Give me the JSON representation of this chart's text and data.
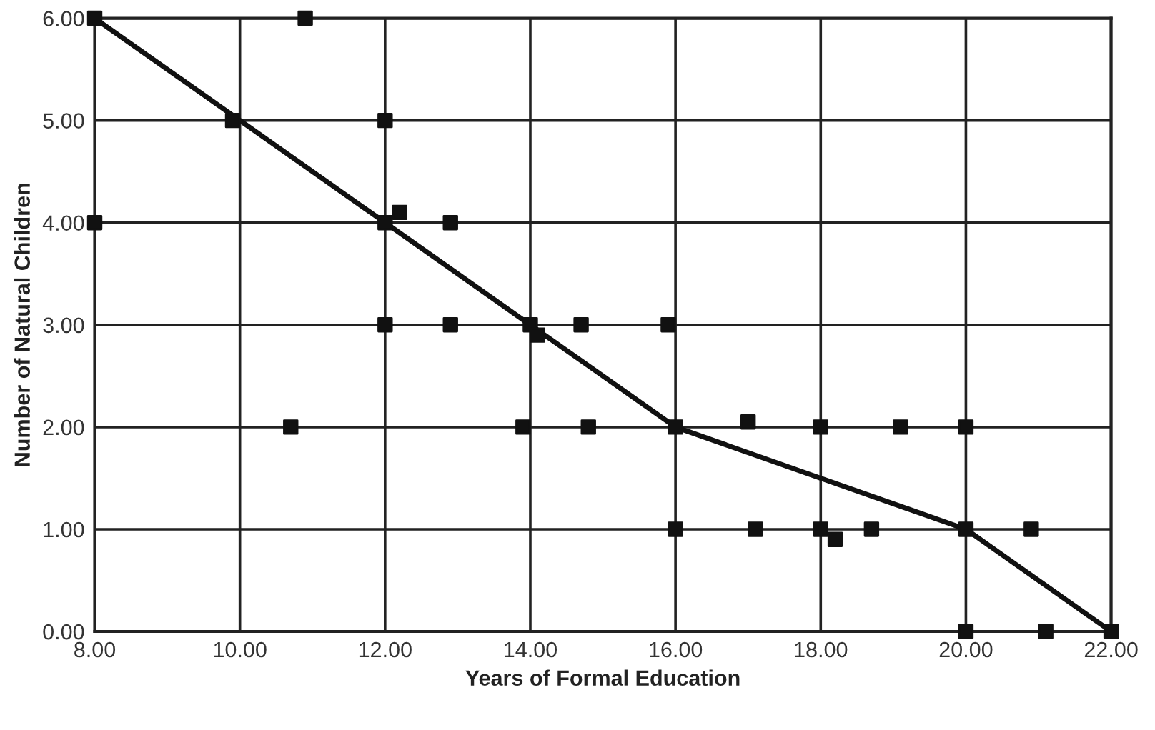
{
  "chart_data": {
    "type": "scatter",
    "xlabel": "Years of Formal Education",
    "ylabel": "Number of Natural Children",
    "xlim": [
      8,
      22
    ],
    "ylim": [
      0,
      6
    ],
    "xticks": [
      {
        "value": 8,
        "label": "8.00"
      },
      {
        "value": 10,
        "label": "10.00"
      },
      {
        "value": 12,
        "label": "12.00"
      },
      {
        "value": 14,
        "label": "14.00"
      },
      {
        "value": 16,
        "label": "16.00"
      },
      {
        "value": 18,
        "label": "18.00"
      },
      {
        "value": 20,
        "label": "20.00"
      },
      {
        "value": 22,
        "label": "22.00"
      }
    ],
    "yticks": [
      {
        "value": 0,
        "label": "0.00"
      },
      {
        "value": 1,
        "label": "1.00"
      },
      {
        "value": 2,
        "label": "2.00"
      },
      {
        "value": 3,
        "label": "3.00"
      },
      {
        "value": 4,
        "label": "4.00"
      },
      {
        "value": 5,
        "label": "5.00"
      },
      {
        "value": 6,
        "label": "6.00"
      }
    ],
    "grid": true,
    "legend": false,
    "series": [
      {
        "color": "#111111",
        "marker": "square",
        "x": [
          8,
          10.9,
          9.9,
          12,
          8,
          12,
          12.2,
          12.9,
          12,
          12.9,
          14,
          14.1,
          14.7,
          15.9,
          10.7,
          13.9,
          14.8,
          16,
          17,
          18,
          19.1,
          20,
          16,
          17.1,
          18,
          18.2,
          18.7,
          20,
          20.9,
          20,
          21.1,
          22
        ],
        "values": [
          6,
          6,
          5,
          5,
          4,
          4,
          4.1,
          4,
          3,
          3,
          3,
          2.9,
          3,
          3,
          2,
          2,
          2,
          2,
          2.05,
          2,
          2,
          2,
          1,
          1,
          1,
          0.9,
          1,
          1,
          1,
          0,
          0,
          0
        ]
      },
      {
        "type": "line",
        "color": "#111111",
        "marker": "none",
        "line_style": "solid",
        "x": [
          8,
          10,
          12,
          14,
          16,
          18,
          20,
          22
        ],
        "values": [
          6,
          5,
          4,
          3,
          2,
          1.5,
          1,
          0
        ]
      }
    ]
  }
}
